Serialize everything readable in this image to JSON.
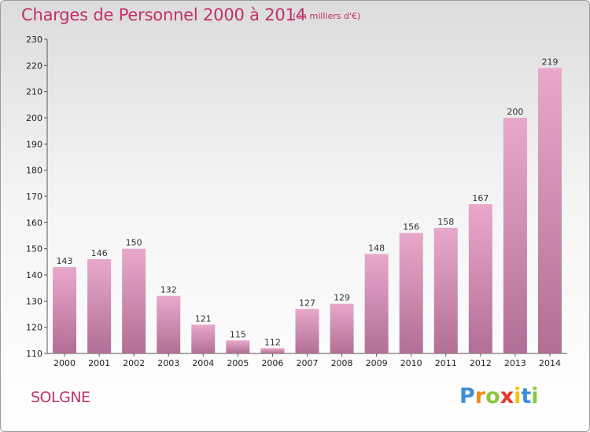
{
  "chart_data": {
    "type": "bar",
    "title": "Charges de Personnel 2000 à 2014",
    "subtitle": "(en milliers d'€)",
    "categories": [
      "2000",
      "2001",
      "2002",
      "2003",
      "2004",
      "2005",
      "2006",
      "2007",
      "2008",
      "2009",
      "2010",
      "2011",
      "2012",
      "2013",
      "2014"
    ],
    "values": [
      143,
      146,
      150,
      132,
      121,
      115,
      112,
      127,
      129,
      148,
      156,
      158,
      167,
      200,
      219
    ],
    "ylim": [
      110,
      230
    ],
    "yticks": [
      110,
      120,
      130,
      140,
      150,
      160,
      170,
      180,
      190,
      200,
      210,
      220,
      230
    ],
    "grid": false,
    "colors": {
      "bar_top": "#e8a8cc",
      "bar_bottom": "#b26f95",
      "text": "#c0306a"
    }
  },
  "location": "SOLGNE",
  "brand": {
    "letters": [
      "P",
      "r",
      "o",
      "x",
      "i",
      "t",
      "i"
    ],
    "colors": [
      "#3c8fd6",
      "#f08a1c",
      "#8cc63f",
      "#e8362b",
      "#f4c20d",
      "#3c8fd6",
      "#8cc63f"
    ]
  }
}
